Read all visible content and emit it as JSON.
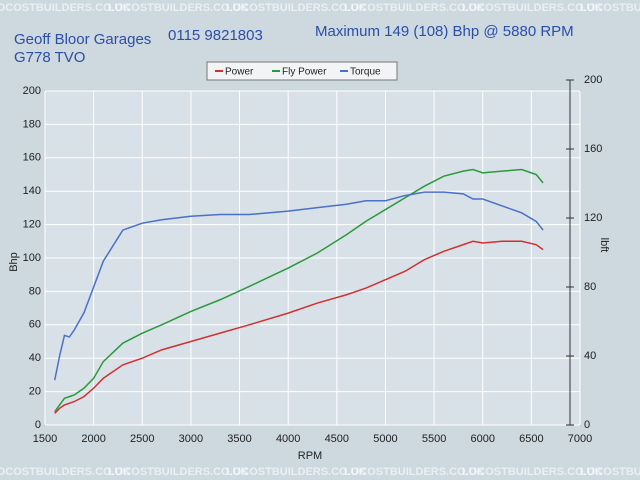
{
  "chart_data": {
    "type": "line",
    "title": "Maximum 149 (108) Bhp @ 5880 RPM",
    "company": "Geoff Bloor Garages",
    "phone": "0115 9821803",
    "registration": "G778 TVO",
    "watermark": "LOCOSTBUILDERS.CO.UK",
    "x_label": "RPM",
    "y_label": "Bhp",
    "y2_label": "lbft",
    "x": [
      1600,
      1650,
      1700,
      1750,
      1800,
      1900,
      2000,
      2100,
      2300,
      2500,
      2700,
      3000,
      3300,
      3600,
      4000,
      4300,
      4600,
      4800,
      5000,
      5200,
      5400,
      5600,
      5800,
      5900,
      6000,
      6200,
      6400,
      6550,
      6620
    ],
    "series": [
      {
        "name": "Power",
        "color": "#d23030",
        "values": [
          7,
          10,
          12,
          13,
          14,
          17,
          22,
          28,
          36,
          40,
          45,
          50,
          55,
          60,
          67,
          73,
          78,
          82,
          87,
          92,
          99,
          104,
          108,
          110,
          109,
          110,
          110,
          108,
          105
        ]
      },
      {
        "name": "Fly Power",
        "color": "#2a9a3a",
        "values": [
          8,
          12,
          16,
          17,
          18,
          22,
          28,
          38,
          49,
          55,
          60,
          68,
          75,
          83,
          94,
          103,
          114,
          122,
          129,
          136,
          143,
          149,
          152,
          153,
          151,
          152,
          153,
          150,
          145
        ]
      },
      {
        "name": "Torque",
        "color": "#4a70c8",
        "axis": "y2",
        "values": [
          26,
          40,
          52,
          51,
          55,
          65,
          80,
          95,
          113,
          117,
          119,
          121,
          122,
          122,
          124,
          126,
          128,
          130,
          130,
          133,
          135,
          135,
          134,
          131,
          131,
          127,
          123,
          118,
          113
        ]
      }
    ],
    "xlim": [
      1500,
      7000
    ],
    "xticks": [
      1500,
      2000,
      2500,
      3000,
      3500,
      4000,
      4500,
      5000,
      5500,
      6000,
      6500,
      7000
    ],
    "ylim": [
      0,
      200
    ],
    "yticks": [
      0,
      20,
      40,
      60,
      80,
      100,
      120,
      140,
      160,
      180,
      200
    ],
    "y2lim": [
      0,
      200
    ],
    "y2ticks": [
      0,
      40,
      80,
      120,
      160,
      200
    ],
    "grid": true
  }
}
